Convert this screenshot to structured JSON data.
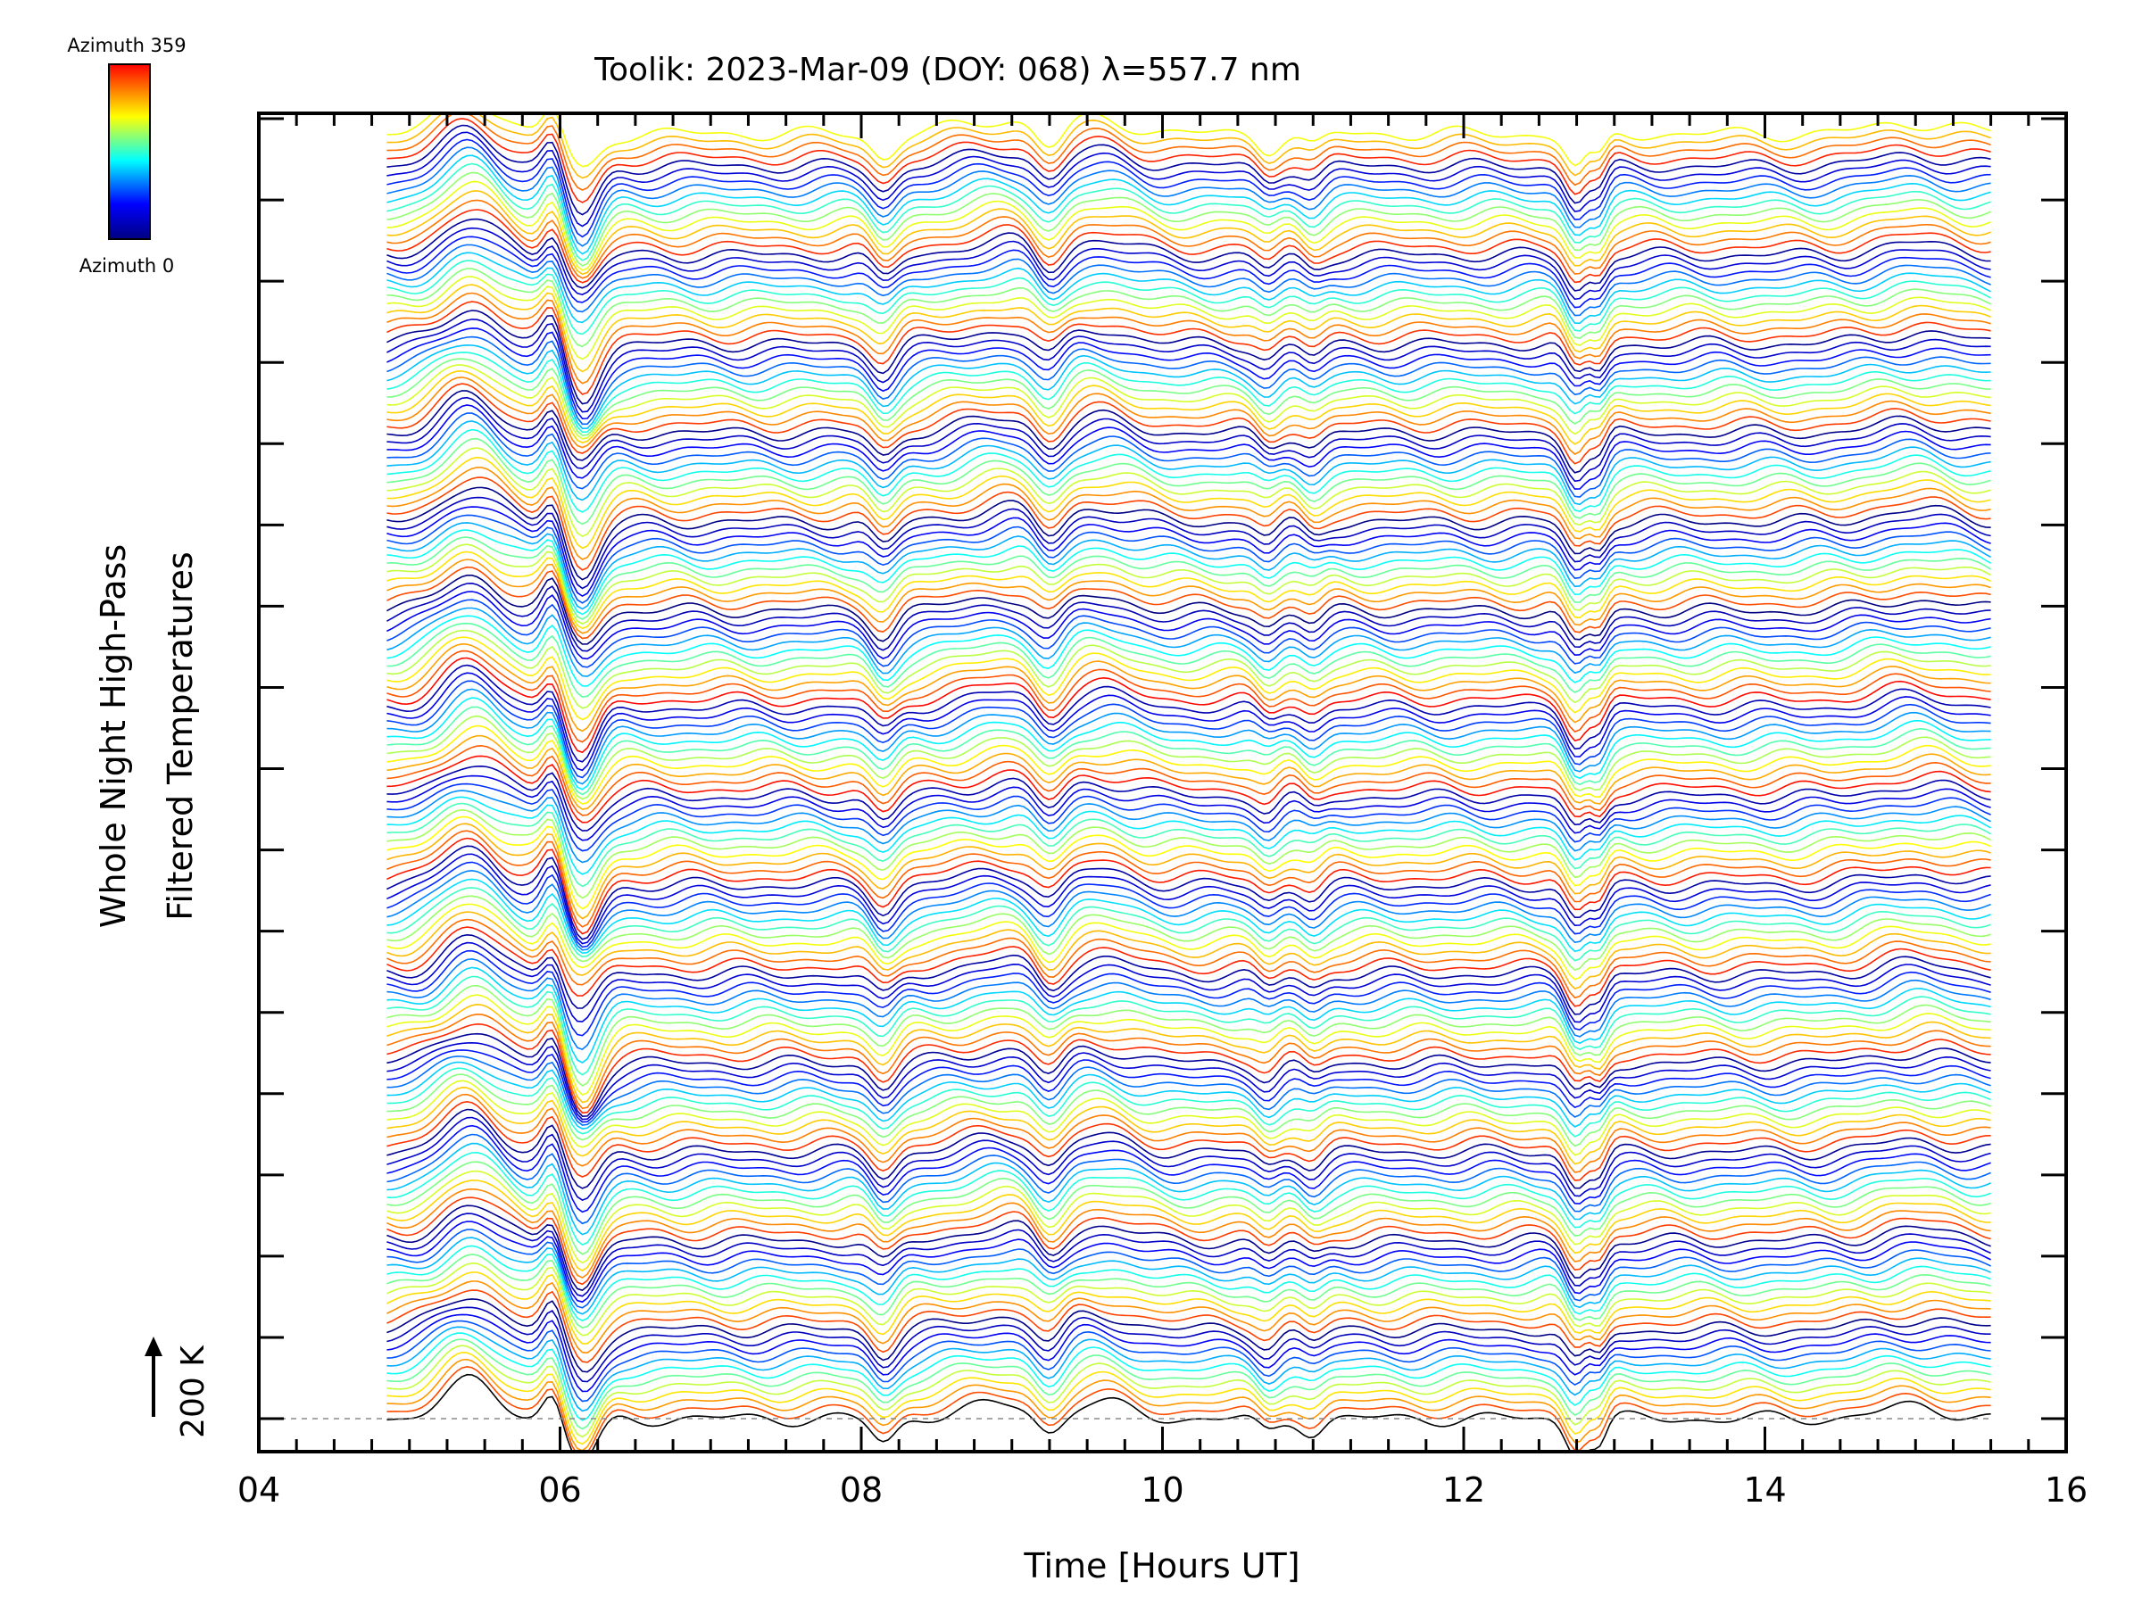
{
  "chart_data": {
    "type": "line",
    "title": "Toolik: 2023-Mar-09 (DOY: 068) λ=557.7 nm",
    "xlabel": "Time [Hours UT]",
    "ylabel_line1": "Whole Night High-Pass",
    "ylabel_line2": "Filtered Temperatures",
    "x_ticks": [
      "04",
      "06",
      "08",
      "10",
      "12",
      "14",
      "16"
    ],
    "xlim": [
      4,
      16
    ],
    "data_time_range": [
      4.85,
      15.5
    ],
    "scale_bar_label": "200 K",
    "colorbar": {
      "top_label": "Azimuth  359",
      "bottom_label": "Azimuth  0",
      "colormap": [
        "#000080",
        "#0000ff",
        "#00ffff",
        "#ffff00",
        "#ff0000"
      ]
    },
    "series_count": 160,
    "features": {
      "dip_times": [
        6.05,
        8.15,
        9.25,
        10.7,
        11.0,
        12.7,
        12.85
      ],
      "peak_times": [
        5.4,
        5.95,
        9.0,
        9.6,
        15.0
      ]
    }
  }
}
